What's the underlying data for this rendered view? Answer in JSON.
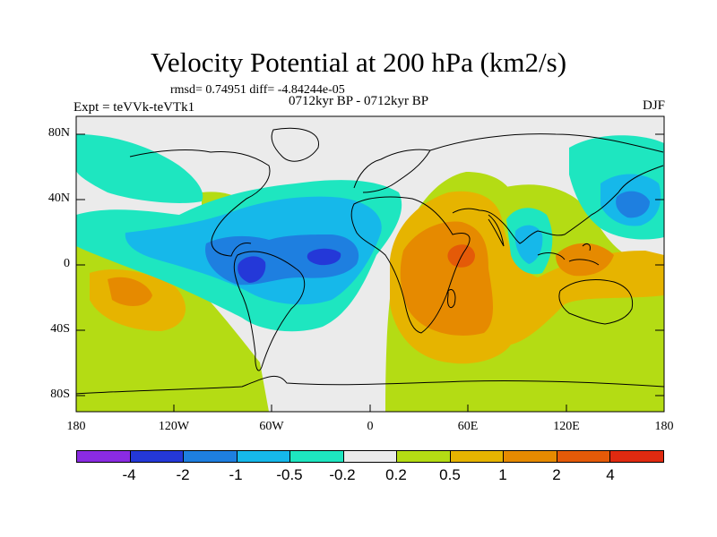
{
  "title": "Velocity Potential at 200 hPa (km2/s)",
  "rmsd_line": "rmsd= 0.74951 diff= -4.84244e-05",
  "expt_label": "Expt = teVVk-teVTk1",
  "period_label": "0712kyr BP - 0712kyr BP",
  "season_label": "DJF",
  "lat_labels": [
    "80N",
    "40N",
    "0",
    "40S",
    "80S"
  ],
  "lon_labels": [
    "180",
    "120W",
    "60W",
    "0",
    "60E",
    "120E",
    "180"
  ],
  "colorbar": {
    "colors": [
      "#8a2be2",
      "#2438d8",
      "#1e7fe0",
      "#16b8ea",
      "#1ee6c0",
      "#ebebeb",
      "#b4dc14",
      "#e6b400",
      "#e68a00",
      "#e45a08",
      "#e02a10"
    ],
    "labels": [
      "-4",
      "-2",
      "-1",
      "-0.5",
      "-0.2",
      "0.2",
      "0.5",
      "1",
      "2",
      "4"
    ]
  },
  "field_colors": {
    "neutral": "#ebebeb",
    "lt_neg_0_2": "#1ee6c0",
    "lt_neg_0_5": "#16b8ea",
    "lt_neg_1": "#1e7fe0",
    "lt_neg_2": "#2438d8",
    "gt_0_2": "#b4dc14",
    "gt_0_5": "#e6b400",
    "gt_1": "#e68a00",
    "gt_2": "#e45a08"
  }
}
